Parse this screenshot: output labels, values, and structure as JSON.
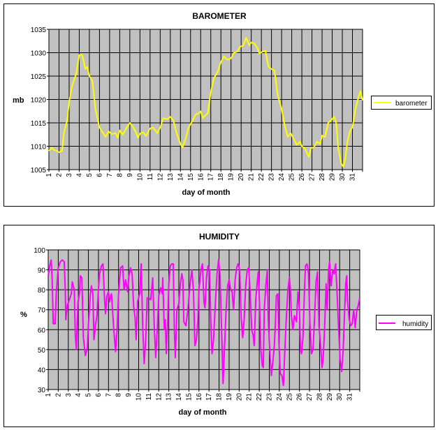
{
  "chart_data": [
    {
      "type": "line",
      "title": "BAROMETER",
      "xlabel": "day of month",
      "ylabel": "mb",
      "xlim": [
        1,
        32
      ],
      "ylim": [
        1005,
        1035
      ],
      "yticks": [
        1005,
        1010,
        1015,
        1020,
        1025,
        1030,
        1035
      ],
      "xtick_labels": [
        "1",
        "2",
        "3",
        "4",
        "5",
        "6",
        "7",
        "8",
        "9",
        "10",
        "11",
        "12",
        "13",
        "14",
        "15",
        "16",
        "17",
        "18",
        "19",
        "20",
        "21",
        "22",
        "23",
        "24",
        "25",
        "26",
        "27",
        "28",
        "29",
        "30",
        "31"
      ],
      "grid": true,
      "legend_position": "right",
      "color": "#ffff00",
      "series": [
        {
          "name": "barometer",
          "x": [
            1,
            1.3,
            1.5,
            1.8,
            2,
            2.3,
            2.5,
            2.8,
            3,
            3.3,
            3.7,
            4,
            4.3,
            4.6,
            4.8,
            5,
            5.3,
            5.6,
            6,
            6.3,
            6.6,
            6.9,
            7.2,
            7.6,
            7.8,
            8,
            8.3,
            8.7,
            9,
            9.3,
            9.6,
            9.8,
            10,
            10.3,
            10.6,
            11,
            11.3,
            11.7,
            12,
            12.3,
            12.7,
            13,
            13.3,
            13.6,
            14,
            14.2,
            14.5,
            14.8,
            15.2,
            15.5,
            15.8,
            16,
            16.2,
            16.5,
            16.7,
            17,
            17.3,
            17.7,
            18,
            18.3,
            18.6,
            19,
            19.3,
            19.6,
            19.9,
            20.2,
            20.5,
            20.8,
            21,
            21.3,
            21.6,
            21.8,
            22.1,
            22.4,
            22.7,
            23,
            23.3,
            23.6,
            24,
            24.3,
            24.6,
            24.9,
            25.2,
            25.5,
            25.8,
            26,
            26.3,
            26.7,
            26.9,
            27.2,
            27.5,
            27.8,
            28,
            28.3,
            28.6,
            28.9,
            29.2,
            29.4,
            29.6,
            29.9,
            30.1,
            30.3,
            30.5,
            30.8,
            31,
            31.3,
            31.6,
            31.8,
            32
          ],
          "values": [
            1009,
            1009.7,
            1009.2,
            1009,
            1008.7,
            1009,
            1013,
            1015.5,
            1019.5,
            1023,
            1025.5,
            1029.5,
            1029.5,
            1026.5,
            1027,
            1025,
            1024,
            1018,
            1014,
            1013,
            1012,
            1013.2,
            1012.6,
            1012.8,
            1011.8,
            1013.4,
            1012.5,
            1014,
            1015,
            1014.2,
            1013,
            1011.8,
            1012.7,
            1013,
            1012.2,
            1013.8,
            1014,
            1012.8,
            1014,
            1016,
            1015.8,
            1016.3,
            1015.5,
            1013,
            1010.5,
            1009.7,
            1011.5,
            1014,
            1015.5,
            1016.8,
            1017,
            1017.5,
            1016,
            1016.7,
            1017,
            1021.5,
            1024.5,
            1026,
            1028,
            1029.2,
            1028.5,
            1028.8,
            1030,
            1030.2,
            1031.3,
            1031.5,
            1033.2,
            1031.6,
            1032.2,
            1032,
            1031,
            1029.8,
            1030.2,
            1030.4,
            1027,
            1026.5,
            1026.2,
            1021,
            1018,
            1014.5,
            1012,
            1012.8,
            1011.5,
            1010.3,
            1011,
            1010,
            1009.5,
            1007.7,
            1009.6,
            1009.8,
            1011,
            1010.5,
            1012.3,
            1012,
            1015,
            1015.6,
            1016.3,
            1015,
            1009.5,
            1006.3,
            1005.6,
            1007.5,
            1011,
            1013.5,
            1014,
            1018,
            1020.5,
            1021.8,
            1019.8
          ]
        }
      ]
    },
    {
      "type": "line",
      "title": "HUMIDITY",
      "xlabel": "day of month",
      "ylabel": "%",
      "xlim": [
        1,
        32
      ],
      "ylim": [
        30,
        100
      ],
      "yticks": [
        30,
        40,
        50,
        60,
        70,
        80,
        90,
        100
      ],
      "xtick_labels": [
        "1",
        "2",
        "3",
        "4",
        "5",
        "6",
        "7",
        "8",
        "9",
        "10",
        "11",
        "12",
        "13",
        "14",
        "15",
        "16",
        "17",
        "18",
        "19",
        "20",
        "21",
        "22",
        "23",
        "24",
        "25",
        "26",
        "27",
        "28",
        "29",
        "30",
        "31"
      ],
      "grid": true,
      "legend_position": "right",
      "color": "#ff00ff",
      "series": [
        {
          "name": "humidity",
          "x": [
            1,
            1.15,
            1.3,
            1.4,
            1.5,
            1.7,
            1.8,
            2,
            2.2,
            2.4,
            2.6,
            2.7,
            2.75,
            2.9,
            3.1,
            3.3,
            3.4,
            3.6,
            3.7,
            3.8,
            3.95,
            4.1,
            4.2,
            4.35,
            4.5,
            4.7,
            4.9,
            5,
            5.2,
            5.3,
            5.45,
            5.55,
            5.7,
            5.85,
            6,
            6.1,
            6.3,
            6.45,
            6.6,
            6.7,
            6.85,
            7,
            7.1,
            7.3,
            7.5,
            7.7,
            7.85,
            8,
            8.2,
            8.4,
            8.55,
            8.7,
            8.9,
            9,
            9.2,
            9.35,
            9.5,
            9.65,
            9.75,
            9.9,
            10.1,
            10.25,
            10.4,
            10.55,
            10.7,
            10.85,
            11,
            11.2,
            11.4,
            11.55,
            11.7,
            11.85,
            12,
            12.2,
            12.35,
            12.4,
            12.55,
            12.65,
            12.75,
            12.9,
            13,
            13.15,
            13.3,
            13.45,
            13.55,
            13.65,
            13.8,
            14,
            14.15,
            14.3,
            14.4,
            14.5,
            14.7,
            14.9,
            15.1,
            15.3,
            15.45,
            15.6,
            15.75,
            15.9,
            16,
            16.2,
            16.35,
            16.5,
            16.6,
            16.75,
            16.9,
            17.05,
            17.2,
            17.3,
            17.45,
            17.6,
            17.8,
            17.95,
            18.1,
            18.25,
            18.4,
            18.55,
            18.7,
            18.85,
            19,
            19.15,
            19.3,
            19.45,
            19.6,
            19.75,
            19.9,
            20.05,
            20.2,
            20.35,
            20.5,
            20.65,
            20.8,
            20.95,
            21.1,
            21.25,
            21.4,
            21.5,
            21.65,
            21.8,
            21.9,
            22.05,
            22.15,
            22.3,
            22.4,
            22.5,
            22.65,
            22.8,
            22.9,
            23.05,
            23.2,
            23.35,
            23.5,
            23.6,
            23.7,
            23.85,
            23.95,
            24.1,
            24.25,
            24.4,
            24.55,
            24.7,
            24.85,
            25,
            25.1,
            25.2,
            25.35,
            25.5,
            25.7,
            25.85,
            26,
            26.1,
            26.2,
            26.35,
            26.5,
            26.6,
            26.75,
            26.9,
            27.05,
            27.2,
            27.35,
            27.5,
            27.65,
            27.8,
            27.95,
            28.1,
            28.25,
            28.35,
            28.5,
            28.65,
            28.75,
            28.9,
            29,
            29.15,
            29.3,
            29.45,
            29.6,
            29.75,
            29.9,
            30.05,
            30.2,
            30.35,
            30.5,
            30.6,
            30.7,
            30.8,
            30.95,
            31.1,
            31.25,
            31.4,
            31.55,
            31.7,
            31.85,
            32
          ],
          "values": [
            87,
            92,
            95,
            84,
            63,
            63,
            78,
            91,
            94,
            95,
            94,
            79,
            65,
            72,
            75,
            78,
            84,
            80,
            57,
            50,
            73,
            78,
            87,
            86,
            56,
            47,
            51,
            62,
            78,
            82,
            78,
            55,
            62,
            67,
            80,
            88,
            92,
            93,
            76,
            68,
            77,
            79,
            74,
            78,
            62,
            49,
            60,
            78,
            91,
            92,
            80,
            85,
            79,
            86,
            91,
            88,
            72,
            66,
            55,
            74,
            78,
            93,
            63,
            43,
            55,
            76,
            76,
            75,
            86,
            62,
            46,
            60,
            77,
            81,
            78,
            86,
            60,
            65,
            48,
            65,
            83,
            92,
            93,
            93,
            60,
            46,
            70,
            73,
            83,
            88,
            85,
            64,
            62,
            70,
            82,
            90,
            80,
            52,
            55,
            65,
            80,
            90,
            93,
            74,
            71,
            86,
            92,
            90,
            60,
            48,
            55,
            70,
            88,
            95,
            87,
            60,
            33,
            52,
            70,
            82,
            85,
            80,
            79,
            70,
            85,
            91,
            93,
            90,
            66,
            56,
            65,
            82,
            90,
            91,
            78,
            60,
            57,
            52,
            75,
            84,
            89,
            70,
            50,
            42,
            41,
            70,
            82,
            90,
            65,
            49,
            37,
            44,
            52,
            62,
            77,
            78,
            55,
            38,
            37,
            32,
            50,
            67,
            80,
            86,
            80,
            67,
            60,
            67,
            64,
            79,
            70,
            50,
            48,
            56,
            80,
            92,
            93,
            88,
            62,
            48,
            50,
            66,
            84,
            89,
            62,
            52,
            41,
            45,
            60,
            83,
            70,
            90,
            94,
            82,
            90,
            88,
            93,
            78,
            60,
            45,
            39,
            50,
            70,
            83,
            87,
            74,
            65,
            62,
            63,
            70,
            61,
            70,
            72,
            76
          ]
        }
      ]
    }
  ]
}
